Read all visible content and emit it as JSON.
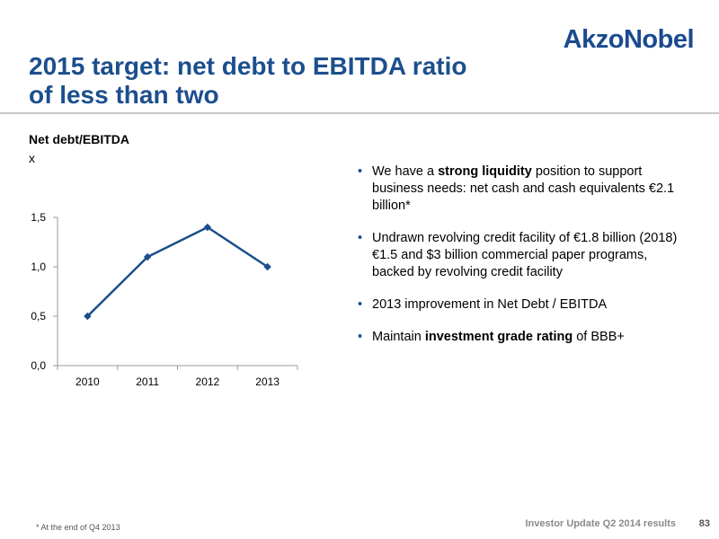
{
  "logo": "AkzoNobel",
  "title_line1": "2015 target: net debt to EBITDA ratio",
  "title_line2": "of less than two",
  "chart_data": {
    "type": "line",
    "title": "Net debt/EBITDA",
    "unit": "x",
    "categories": [
      "2010",
      "2011",
      "2012",
      "2013"
    ],
    "series": [
      {
        "values": [
          0.5,
          1.1,
          1.4,
          1.0
        ]
      }
    ],
    "y_ticks": [
      "0,0",
      "0,5",
      "1,0",
      "1,5"
    ],
    "ylim": [
      0,
      1.5
    ],
    "grid": false,
    "line_color": "#1c4f8d"
  },
  "bullets": [
    {
      "parts": [
        {
          "text": "We have a ",
          "bold": false
        },
        {
          "text": "strong liquidity",
          "bold": true
        },
        {
          "text": " position to support business needs: net cash and cash equivalents €2.1 billion*",
          "bold": false
        }
      ]
    },
    {
      "parts": [
        {
          "text": "Undrawn revolving credit facility of €1.8 billion (2018) €1.5 and $3 billion commercial paper programs, backed by revolving credit facility",
          "bold": false
        }
      ]
    },
    {
      "parts": [
        {
          "text": "2013 improvement in Net Debt / EBITDA",
          "bold": false
        }
      ]
    },
    {
      "parts": [
        {
          "text": "Maintain ",
          "bold": false
        },
        {
          "text": "investment grade rating",
          "bold": true
        },
        {
          "text": " of BBB+",
          "bold": false
        }
      ]
    }
  ],
  "bullet_char": "•",
  "footnote": "* At the end of Q4 2013",
  "footer_text": "Investor Update Q2 2014 results",
  "page_number": "83"
}
